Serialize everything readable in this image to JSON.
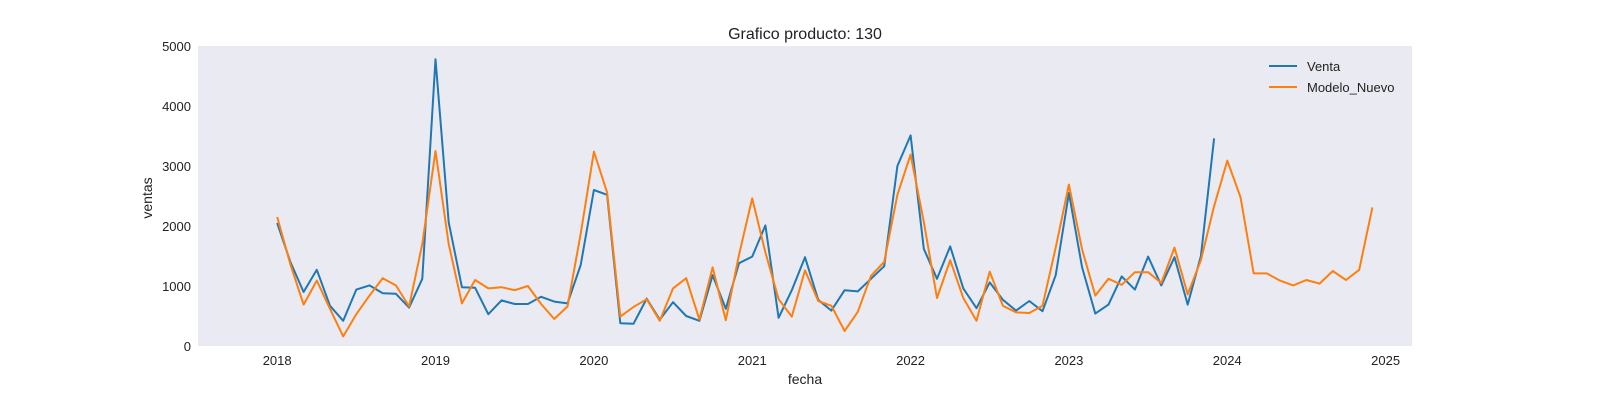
{
  "chart_data": {
    "type": "line",
    "title": "Grafico producto: 130",
    "xlabel": "fecha",
    "ylabel": "ventas",
    "x_tick_labels": [
      "2018",
      "2019",
      "2020",
      "2021",
      "2022",
      "2023",
      "2024",
      "2025"
    ],
    "y_tick_labels": [
      "0",
      "1000",
      "2000",
      "3000",
      "4000",
      "5000"
    ],
    "ylim": [
      0,
      5000
    ],
    "xlim": [
      "2017-07",
      "2025-03"
    ],
    "grid": false,
    "legend": "top-right",
    "background": "#eaeaf2",
    "x": [
      "2018-01",
      "2018-02",
      "2018-03",
      "2018-04",
      "2018-05",
      "2018-06",
      "2018-07",
      "2018-08",
      "2018-09",
      "2018-10",
      "2018-11",
      "2018-12",
      "2019-01",
      "2019-02",
      "2019-03",
      "2019-04",
      "2019-05",
      "2019-06",
      "2019-07",
      "2019-08",
      "2019-09",
      "2019-10",
      "2019-11",
      "2019-12",
      "2020-01",
      "2020-02",
      "2020-03",
      "2020-04",
      "2020-05",
      "2020-06",
      "2020-07",
      "2020-08",
      "2020-09",
      "2020-10",
      "2020-11",
      "2020-12",
      "2021-01",
      "2021-02",
      "2021-03",
      "2021-04",
      "2021-05",
      "2021-06",
      "2021-07",
      "2021-08",
      "2021-09",
      "2021-10",
      "2021-11",
      "2021-12",
      "2022-01",
      "2022-02",
      "2022-03",
      "2022-04",
      "2022-05",
      "2022-06",
      "2022-07",
      "2022-08",
      "2022-09",
      "2022-10",
      "2022-11",
      "2022-12",
      "2023-01",
      "2023-02",
      "2023-03",
      "2023-04",
      "2023-05",
      "2023-06",
      "2023-07",
      "2023-08",
      "2023-09",
      "2023-10",
      "2023-11",
      "2023-12",
      "2024-01",
      "2024-02",
      "2024-03",
      "2024-04",
      "2024-05",
      "2024-06",
      "2024-07",
      "2024-08",
      "2024-09",
      "2024-10",
      "2024-11",
      "2024-12"
    ],
    "series": [
      {
        "name": "Venta",
        "color": "#1f77b4",
        "values": [
          2050,
          1400,
          900,
          1270,
          670,
          420,
          940,
          1010,
          880,
          870,
          640,
          1120,
          4780,
          2060,
          980,
          970,
          530,
          760,
          700,
          700,
          820,
          740,
          710,
          1350,
          2600,
          2520,
          380,
          370,
          790,
          440,
          730,
          500,
          420,
          1180,
          620,
          1380,
          1490,
          2010,
          470,
          930,
          1480,
          770,
          590,
          930,
          910,
          1120,
          1330,
          3000,
          3510,
          1620,
          1120,
          1660,
          960,
          630,
          1060,
          770,
          590,
          750,
          580,
          1180,
          2550,
          1310,
          540,
          690,
          1160,
          940,
          1490,
          1010,
          1480,
          690,
          1500,
          3460,
          null,
          null,
          null,
          null,
          null,
          null,
          null,
          null,
          null,
          null,
          null,
          null
        ]
      },
      {
        "name": "Modelo_Nuevo",
        "color": "#ff7f0e",
        "values": [
          2150,
          1360,
          690,
          1090,
          620,
          160,
          530,
          840,
          1130,
          1010,
          660,
          1700,
          3250,
          1700,
          710,
          1100,
          960,
          980,
          930,
          1000,
          700,
          450,
          660,
          1870,
          3240,
          2560,
          490,
          650,
          780,
          420,
          960,
          1130,
          440,
          1310,
          430,
          1520,
          2460,
          1560,
          780,
          490,
          1260,
          750,
          670,
          250,
          570,
          1170,
          1400,
          2520,
          3190,
          2070,
          800,
          1430,
          800,
          420,
          1240,
          670,
          560,
          550,
          670,
          1640,
          2690,
          1610,
          840,
          1120,
          1020,
          1230,
          1230,
          1050,
          1640,
          860,
          1430,
          2330,
          3090,
          2480,
          1210,
          1210,
          1090,
          1010,
          1100,
          1040,
          1250,
          1100,
          1270,
          2310
        ]
      }
    ]
  }
}
